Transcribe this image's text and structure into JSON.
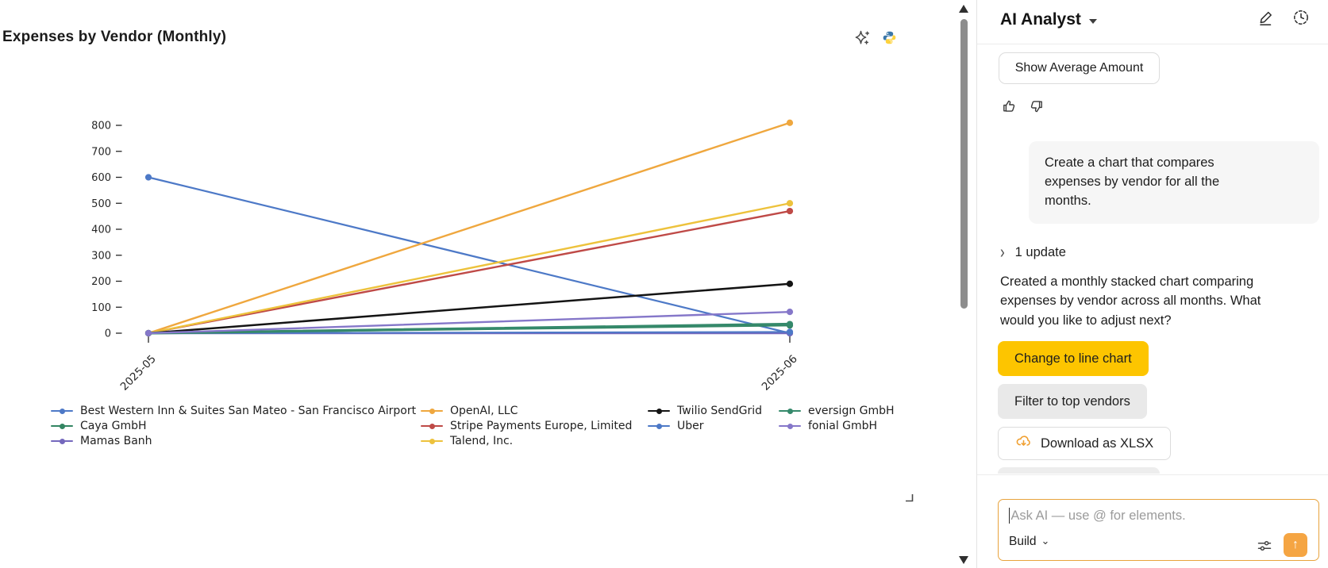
{
  "chart": {
    "title": "Expenses by Vendor (Monthly)",
    "toolbar": {
      "ai_icon": "sparkle-ai-icon",
      "code_icon": "python-logo-icon"
    },
    "chart_data": {
      "type": "line",
      "x": [
        "2025-05",
        "2025-06"
      ],
      "series": [
        {
          "name": "Best Western Inn & Suites San Mateo - San Francisco Airport",
          "color": "#4d79c7",
          "values": [
            600,
            0
          ],
          "width": 2.2
        },
        {
          "name": "Caya GmbH",
          "color": "#338562",
          "values": [
            0,
            30
          ],
          "width": 2.4
        },
        {
          "name": "Mamas Banh",
          "color": "#7468bd",
          "values": [
            0,
            0
          ],
          "width": 2.4
        },
        {
          "name": "OpenAI, LLC",
          "color": "#efa73e",
          "values": [
            0,
            810
          ],
          "width": 2.4
        },
        {
          "name": "Stripe Payments Europe, Limited",
          "color": "#bf4a47",
          "values": [
            0,
            470
          ],
          "width": 2.4
        },
        {
          "name": "Talend, Inc.",
          "color": "#edc23c",
          "values": [
            0,
            500
          ],
          "width": 2.4
        },
        {
          "name": "Twilio SendGrid",
          "color": "#141414",
          "values": [
            0,
            190
          ],
          "width": 2.5
        },
        {
          "name": "Uber",
          "color": "#4d79c7",
          "values": [
            0,
            5
          ],
          "width": 2.0
        },
        {
          "name": "eversign GmbH",
          "color": "#35896b",
          "values": [
            0,
            35
          ],
          "width": 3.3
        },
        {
          "name": "fonial GmbH",
          "color": "#8577c9",
          "values": [
            0,
            82
          ],
          "width": 2.4
        }
      ],
      "ylim": [
        0,
        800
      ],
      "ytick_step": 100,
      "grid": false,
      "legend_position": "bottom",
      "legend_columns": [
        [
          0,
          1,
          2
        ],
        [
          3,
          4,
          5
        ],
        [
          6,
          7
        ],
        [
          8,
          9
        ]
      ]
    }
  },
  "panel": {
    "title": "AI Analyst",
    "header_icons": [
      "edit-pencil-icon",
      "history-clock-icon"
    ],
    "show_average_button": "Show Average Amount",
    "feedback_icons": [
      "thumbs-up-icon",
      "thumbs-down-icon"
    ],
    "user_message": "Create a chart that compares expenses by vendor for all the months.",
    "updates_label": "1 update",
    "assistant_message": "Created a monthly stacked chart comparing expenses by vendor across all months. What would you like to adjust next?",
    "suggestions": [
      {
        "label": "Change to line chart",
        "variant": "primary",
        "accent": "#fdc500"
      },
      {
        "label": "Filter to top vendors",
        "variant": "secondary",
        "accent": "#e9e9e9"
      }
    ],
    "download_button": {
      "label": "Download as XLSX",
      "icon": "cloud-download-icon",
      "icon_color": "#f0a032"
    },
    "input": {
      "placeholder": "Ask AI — use @ for elements.",
      "mode_label": "Build",
      "send_icon": "arrow-up-icon",
      "send_color": "#f5a543"
    }
  }
}
